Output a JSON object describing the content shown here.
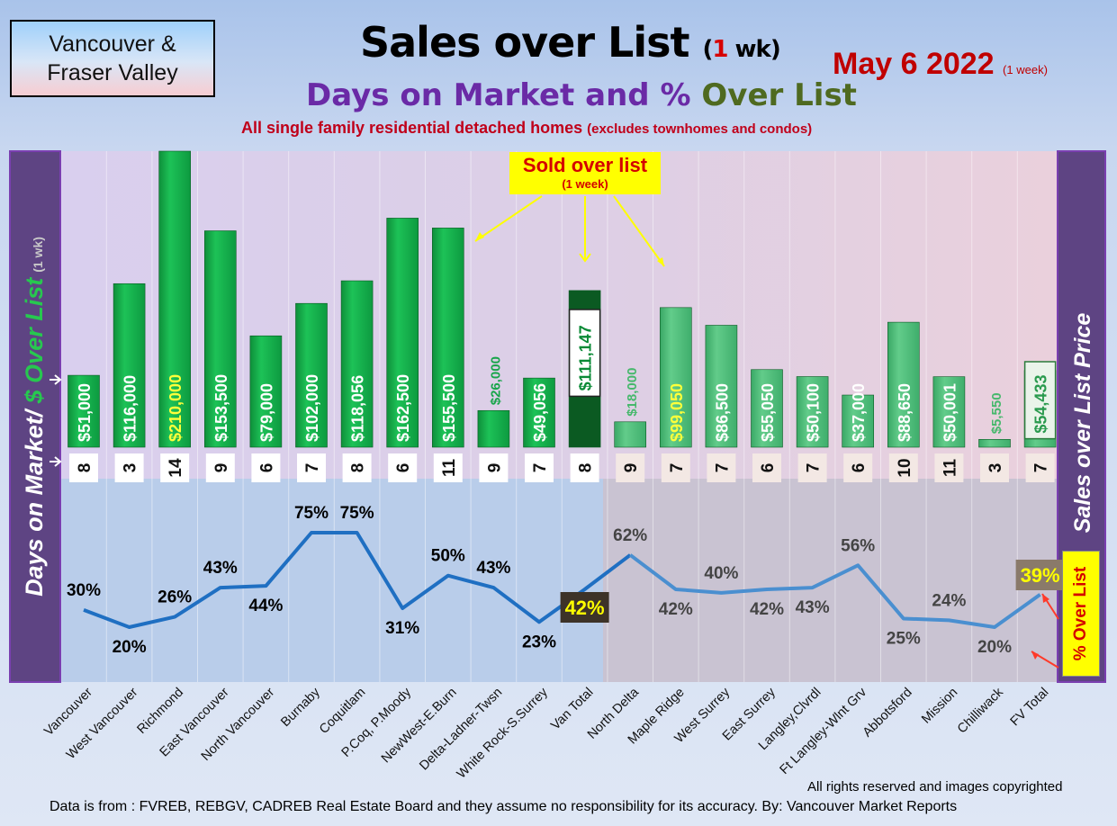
{
  "header": {
    "region_line1": "Vancouver &",
    "region_line2": "Fraser Valley",
    "title_main": "Sales over List ",
    "title_paren_open": "(",
    "title_num": "1",
    "title_paren_close": " wk)",
    "date": "May 6  2022",
    "date_note": "(1 week)",
    "subtitle_part1": "Days on Market and % ",
    "subtitle_part2": "Over List",
    "subtitle2_main": "All single family residential detached homes ",
    "subtitle2_small": "(excludes townhomes and condos)"
  },
  "left_panel": {
    "part1": "Days on Market/ ",
    "part2": "$ Over List",
    "part3": "(1 wk)"
  },
  "right_panel": {
    "label": "Sales over List Price"
  },
  "annotations": {
    "sold_line1": "Sold over list",
    "sold_line2": "(1 week)",
    "pct_over_list": "% Over List"
  },
  "footer": {
    "rights": "All rights reserved and  images copyrighted",
    "source": "Data is from : FVREB, REBGV, CADREB Real Estate Board and they assume no responsibility for its accuracy. By: Vancouver Market Reports"
  },
  "colors": {
    "bar_green": "#17b24e",
    "bar_light_green": "#52c07a",
    "bar_dark_total": "#0b5a22",
    "line_blue": "#1f6fc2",
    "line_light_blue": "#4a8fd0",
    "side_panel_purple": "#5e4483"
  },
  "chart_data": {
    "type": "bar",
    "categories": [
      "Vancouver",
      "West Vancouver",
      "Richmond",
      "East Vancouver",
      "North Vancouver",
      "Burnaby",
      "Coquitlam",
      "P.Coq, P.Moody",
      "NewWest-E.Burn",
      "Delta-Ladner-Twsn",
      "White Rock-S.Surrey",
      "Van Total",
      "North Delta",
      "Maple Ridge",
      "West Surrey",
      "East Surrey",
      "Langley,Clvrdl",
      "Ft Langley-Wlnt Grv",
      "Abbotsford",
      "Mission",
      "Chilliwack",
      "FV Total"
    ],
    "series": [
      {
        "values": [
          51000,
          116000,
          210000,
          153500,
          79000,
          102000,
          118056,
          162500,
          155500,
          26000,
          49056,
          111147,
          18000,
          99050,
          86500,
          55050,
          50100,
          37000,
          88650,
          50001,
          5550,
          54433
        ],
        "value_labels": [
          "$51,000",
          "$116,000",
          "$210,000",
          "$153,500",
          "$79,000",
          "$102,000",
          "$118,056",
          "$162,500",
          "$155,500",
          "$26,000",
          "$49,056",
          "$111,147",
          "$18,000",
          "$99,050",
          "$86,500",
          "$55,050",
          "$50,100",
          "$37,000",
          "$88,650",
          "$50,001",
          "$5,550",
          "$54,433"
        ]
      },
      {
        "values": [
          8,
          3,
          14,
          9,
          6,
          7,
          8,
          6,
          11,
          9,
          7,
          8,
          9,
          7,
          7,
          6,
          7,
          6,
          10,
          11,
          3,
          7
        ]
      },
      {
        "type": "line",
        "values": [
          30,
          20,
          26,
          43,
          44,
          75,
          75,
          31,
          50,
          43,
          23,
          42,
          62,
          42,
          40,
          42,
          43,
          56,
          25,
          24,
          20,
          39
        ],
        "value_labels": [
          "30%",
          "20%",
          "26%",
          "43%",
          "44%",
          "75%",
          "75%",
          "31%",
          "50%",
          "43%",
          "23%",
          "42%",
          "62%",
          "42%",
          "40%",
          "42%",
          "43%",
          "56%",
          "25%",
          "24%",
          "20%",
          "39%"
        ]
      }
    ],
    "ylim": [
      0,
      210000
    ]
  }
}
